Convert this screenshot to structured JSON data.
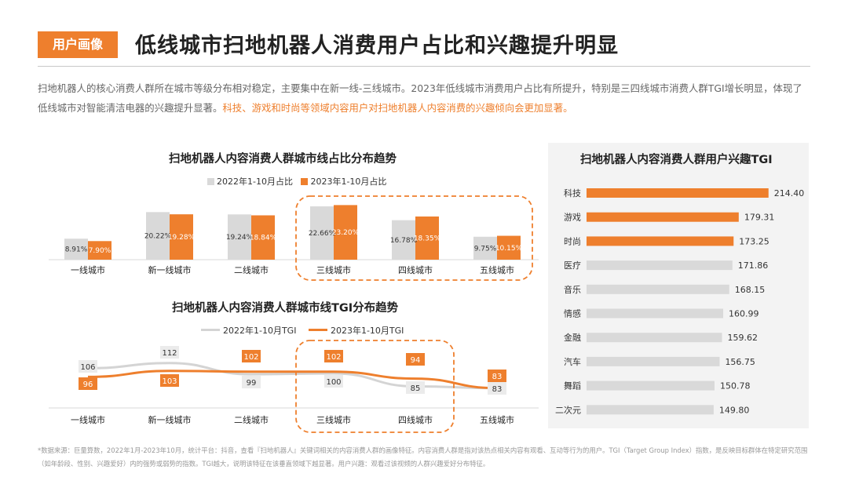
{
  "header": {
    "tag": "用户画像",
    "title": "低线城市扫地机器人消费用户占比和兴趣提升明显"
  },
  "intro": {
    "normal": "扫地机器人的核心消费人群所在城市等级分布相对稳定，主要集中在新一线-三线城市。2023年低线城市消费用户占比有所提升，特别是三四线城市消费人群TGI增长明显，体现了低线城市对智能清洁电器的兴趣提升显著。",
    "highlight": "科技、游戏和时尚等领域内容用户对扫地机器人内容消费的兴趣倾向会更加显著。"
  },
  "colors": {
    "accent": "#ee7f2d",
    "gray_bar": "#d9d9d9",
    "gray_line": "#d4d4d4",
    "panel_bg": "#f3f3f3"
  },
  "chart_data": [
    {
      "type": "bar",
      "title": "扫地机器人内容消费人群城市线占比分布趋势",
      "categories": [
        "一线城市",
        "新一线城市",
        "二线城市",
        "三线城市",
        "四线城市",
        "五线城市"
      ],
      "series": [
        {
          "name": "2022年1-10月占比",
          "values": [
            8.91,
            20.22,
            19.24,
            22.66,
            16.78,
            9.75
          ],
          "labels": [
            "8.91%",
            "20.22%",
            "19.24%",
            "22.66%",
            "16.78%",
            "9.75%"
          ]
        },
        {
          "name": "2023年1-10月占比",
          "values": [
            7.9,
            19.28,
            18.84,
            23.2,
            18.35,
            10.15
          ],
          "labels": [
            "7.90%",
            "19.28%",
            "18.84%",
            "23.20%",
            "18.35%",
            "10.15%"
          ]
        }
      ],
      "unit": "%",
      "highlight_categories": [
        "三线城市",
        "四线城市",
        "五线城市"
      ]
    },
    {
      "type": "line",
      "title": "扫地机器人内容消费人群城市线TGI分布趋势",
      "categories": [
        "一线城市",
        "新一线城市",
        "二线城市",
        "三线城市",
        "四线城市",
        "五线城市"
      ],
      "series": [
        {
          "name": "2022年1-10月TGI",
          "values": [
            106,
            112,
            99,
            100,
            85,
            83
          ]
        },
        {
          "name": "2023年1-10月TGI",
          "values": [
            96,
            103,
            102,
            102,
            94,
            83
          ]
        }
      ],
      "highlight_categories": [
        "三线城市",
        "四线城市"
      ]
    },
    {
      "type": "bar",
      "orientation": "horizontal",
      "title": "扫地机器人内容消费人群用户兴趣TGI",
      "categories": [
        "科技",
        "游戏",
        "时尚",
        "医疗",
        "音乐",
        "情感",
        "金融",
        "汽车",
        "舞蹈",
        "二次元"
      ],
      "values": [
        214.4,
        179.31,
        173.25,
        171.86,
        168.15,
        160.99,
        159.62,
        156.75,
        150.78,
        149.8
      ],
      "labels": [
        "214.40",
        "179.31",
        "173.25",
        "171.86",
        "168.15",
        "160.99",
        "159.62",
        "156.75",
        "150.78",
        "149.80"
      ],
      "highlighted": [
        "科技",
        "游戏",
        "时尚"
      ]
    }
  ],
  "footnote": "*数据来源：巨量算数，2022年1月-2023年10月，统计平台：抖音，查看『扫地机器人』关键词相关的内容消费人群的画像特征。内容消费人群是指对该热点相关内容有观看、互动等行为的用户。TGI（Target Group Index）指数，是反映目标群体在特定研究范围（如年龄段、性别、兴趣爱好）内的强势或弱势的指数。TGI越大，说明该特征在该垂直领域下越显著。用户兴趣：观看过该视频的人群兴趣爱好分布特征。"
}
